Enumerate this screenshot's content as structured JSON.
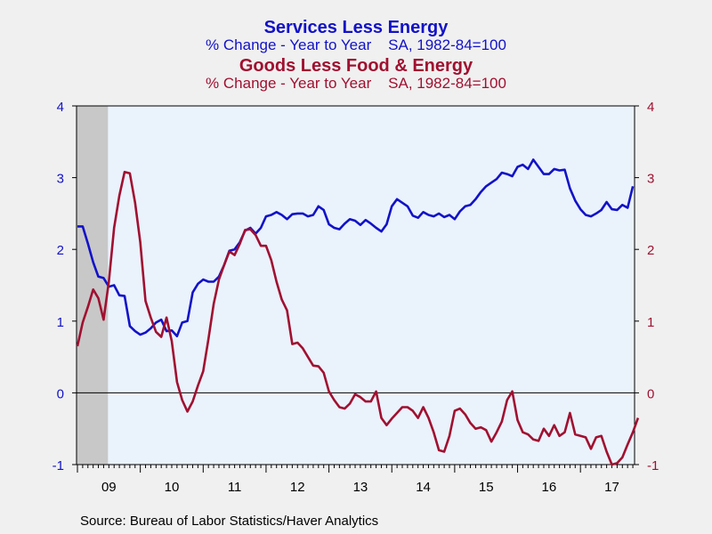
{
  "titles": {
    "series1_title": "Services Less Energy",
    "series1_subtitle": "% Change - Year to Year    SA, 1982-84=100",
    "series2_title": "Goods Less Food & Energy",
    "series2_subtitle": "% Change - Year to Year    SA, 1982-84=100"
  },
  "source": "Source:  Bureau of Labor Statistics/Haver Analytics",
  "colors": {
    "series1": "#1212c8",
    "series2": "#a01030",
    "plot_bg": "#eaf2fc",
    "recession": "#c8c8c8"
  },
  "chart_data": {
    "type": "line",
    "x_ticks": [
      "09",
      "10",
      "11",
      "12",
      "13",
      "14",
      "15",
      "16",
      "17"
    ],
    "ylim": [
      -1,
      4
    ],
    "y_ticks": [
      -1,
      0,
      1,
      2,
      3,
      4
    ],
    "x_start": "2009-01",
    "recession_shading": [
      "2009-01",
      "2009-06"
    ],
    "grid": false,
    "zero_line": true,
    "series": [
      {
        "name": "Services Less Energy",
        "axis": "left",
        "values": [
          2.32,
          2.32,
          2.08,
          1.82,
          1.62,
          1.6,
          1.48,
          1.5,
          1.36,
          1.35,
          0.93,
          0.86,
          0.81,
          0.84,
          0.9,
          0.98,
          1.02,
          0.86,
          0.87,
          0.79,
          0.98,
          1.0,
          1.4,
          1.52,
          1.58,
          1.55,
          1.55,
          1.62,
          1.78,
          1.98,
          2.0,
          2.1,
          2.26,
          2.3,
          2.22,
          2.3,
          2.46,
          2.48,
          2.52,
          2.48,
          2.42,
          2.49,
          2.5,
          2.5,
          2.46,
          2.48,
          2.6,
          2.55,
          2.35,
          2.3,
          2.28,
          2.36,
          2.42,
          2.4,
          2.34,
          2.41,
          2.36,
          2.3,
          2.25,
          2.35,
          2.6,
          2.7,
          2.65,
          2.6,
          2.47,
          2.44,
          2.52,
          2.48,
          2.46,
          2.5,
          2.45,
          2.48,
          2.42,
          2.53,
          2.6,
          2.62,
          2.7,
          2.8,
          2.88,
          2.93,
          2.98,
          3.07,
          3.05,
          3.02,
          3.15,
          3.18,
          3.12,
          3.25,
          3.15,
          3.05,
          3.05,
          3.12,
          3.1,
          3.11,
          2.85,
          2.68,
          2.56,
          2.48,
          2.46,
          2.5,
          2.55,
          2.66,
          2.56,
          2.55,
          2.62,
          2.58,
          2.88
        ]
      },
      {
        "name": "Goods Less Food & Energy",
        "axis": "right",
        "values": [
          0.65,
          0.98,
          1.2,
          1.44,
          1.32,
          1.02,
          1.55,
          2.3,
          2.75,
          3.08,
          3.06,
          2.65,
          2.1,
          1.28,
          1.05,
          0.85,
          0.78,
          1.05,
          0.72,
          0.15,
          -0.1,
          -0.26,
          -0.12,
          0.1,
          0.3,
          0.75,
          1.24,
          1.58,
          1.78,
          1.97,
          1.92,
          2.08,
          2.27,
          2.28,
          2.2,
          2.05,
          2.05,
          1.85,
          1.55,
          1.3,
          1.15,
          0.68,
          0.7,
          0.62,
          0.5,
          0.38,
          0.37,
          0.28,
          0.02,
          -0.1,
          -0.2,
          -0.22,
          -0.15,
          -0.02,
          -0.06,
          -0.12,
          -0.12,
          0.02,
          -0.35,
          -0.45,
          -0.36,
          -0.28,
          -0.2,
          -0.2,
          -0.25,
          -0.35,
          -0.2,
          -0.35,
          -0.55,
          -0.8,
          -0.82,
          -0.6,
          -0.25,
          -0.22,
          -0.3,
          -0.42,
          -0.5,
          -0.48,
          -0.52,
          -0.68,
          -0.55,
          -0.4,
          -0.1,
          0.02,
          -0.38,
          -0.55,
          -0.58,
          -0.65,
          -0.67,
          -0.5,
          -0.6,
          -0.45,
          -0.6,
          -0.55,
          -0.28,
          -0.58,
          -0.6,
          -0.62,
          -0.78,
          -0.62,
          -0.6,
          -0.82,
          -1.0,
          -0.98,
          -0.9,
          -0.72,
          -0.55,
          -0.35
        ]
      }
    ]
  }
}
